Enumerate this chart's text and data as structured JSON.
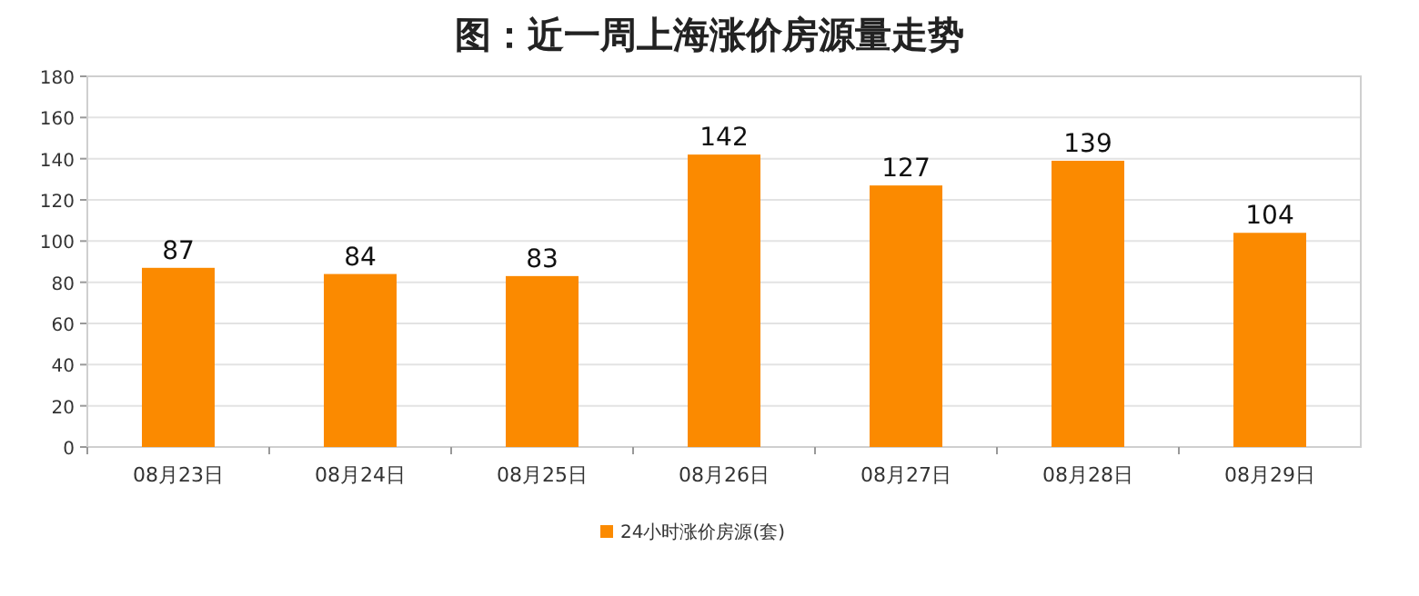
{
  "chart_data": {
    "type": "bar",
    "title": "图：近一周上海涨价房源量走势",
    "categories": [
      "08月23日",
      "08月24日",
      "08月25日",
      "08月26日",
      "08月27日",
      "08月28日",
      "08月29日"
    ],
    "series": [
      {
        "name": "24小时涨价房源(套)",
        "color": "#fb8a00",
        "values": [
          87,
          84,
          83,
          142,
          127,
          139,
          104
        ]
      }
    ],
    "ylim": [
      0,
      180
    ],
    "yticks": [
      0,
      20,
      40,
      60,
      80,
      100,
      120,
      140,
      160,
      180
    ],
    "grid": "y",
    "legend": "bottom",
    "data_labels": true
  }
}
